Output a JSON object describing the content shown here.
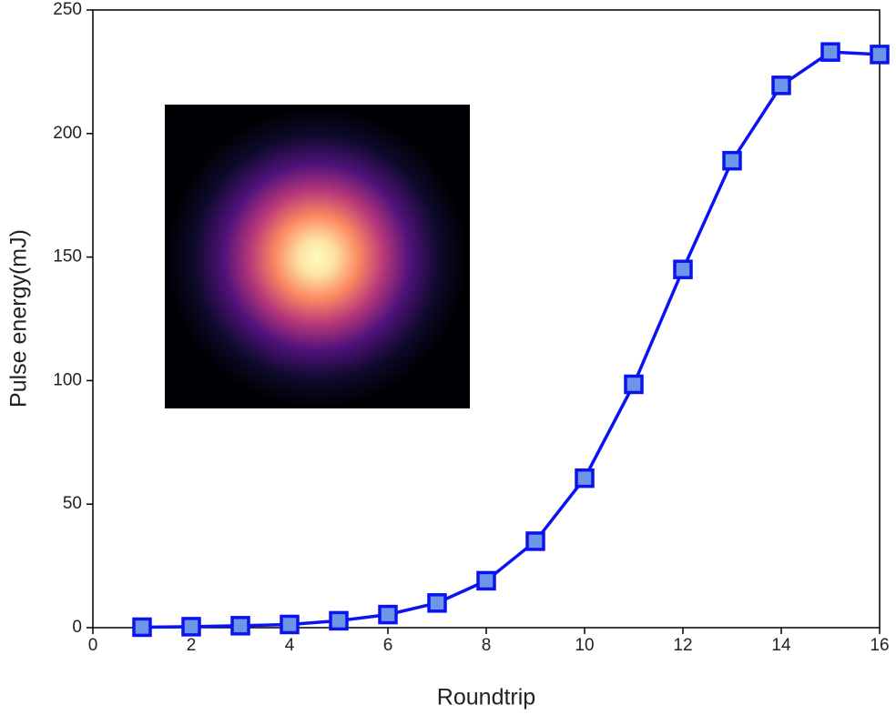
{
  "chart_data": {
    "type": "line",
    "x_label": "Roundtrip",
    "y_label": "Pulse energy(mJ)",
    "x": [
      1,
      2,
      3,
      4,
      5,
      6,
      7,
      8,
      9,
      10,
      11,
      12,
      13,
      14,
      15,
      16
    ],
    "series": [
      {
        "color": "#0a14f0",
        "marker_face_color": "#6e96e6",
        "values": [
          0.2,
          0.4,
          0.8,
          1.3,
          2.8,
          5.3,
          10,
          19,
          35,
          60.5,
          98.5,
          145,
          189,
          219.5,
          233,
          232
        ]
      }
    ],
    "xlim": [
      0,
      16
    ],
    "xticks": [
      0,
      2,
      4,
      6,
      8,
      10,
      12,
      14,
      16
    ],
    "ylim": [
      0,
      250
    ],
    "yticks": [
      0,
      50,
      100,
      150,
      200,
      250
    ],
    "grid": false
  }
}
